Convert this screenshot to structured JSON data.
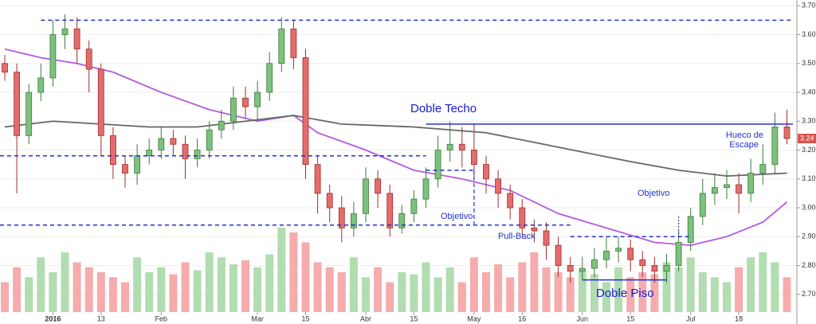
{
  "chart_data": {
    "type": "candlestick",
    "open": [
      3.5,
      3.47,
      3.25,
      3.4,
      3.45,
      3.6,
      3.62,
      3.55,
      3.48,
      3.25,
      3.15,
      3.12,
      3.18,
      3.2,
      3.24,
      3.22,
      3.17,
      3.2,
      3.27,
      3.3,
      3.38,
      3.35,
      3.4,
      3.5,
      3.62,
      3.52,
      3.15,
      3.05,
      3.0,
      2.93,
      2.98,
      3.1,
      3.05,
      2.93,
      2.98,
      3.03,
      3.1,
      3.2,
      3.22,
      3.2,
      3.15,
      3.1,
      3.05,
      3.0,
      2.93,
      2.92,
      2.87,
      2.8,
      2.78,
      2.79,
      2.82,
      2.85,
      2.86,
      2.82,
      2.8,
      2.78,
      2.8,
      2.88,
      2.97,
      3.05,
      3.07,
      3.08,
      3.05,
      3.12,
      3.15,
      3.28
    ],
    "high": [
      3.53,
      3.5,
      3.43,
      3.5,
      3.65,
      3.67,
      3.66,
      3.58,
      3.5,
      3.28,
      3.18,
      3.22,
      3.24,
      3.28,
      3.27,
      3.25,
      3.24,
      3.3,
      3.34,
      3.42,
      3.42,
      3.44,
      3.54,
      3.66,
      3.65,
      3.55,
      3.18,
      3.08,
      3.04,
      3.02,
      3.14,
      3.13,
      3.08,
      3.01,
      3.06,
      3.14,
      3.25,
      3.3,
      3.28,
      3.29,
      3.18,
      3.13,
      3.08,
      3.03,
      2.96,
      2.95,
      2.9,
      2.83,
      2.83,
      2.86,
      2.9,
      2.9,
      2.89,
      2.85,
      2.83,
      2.84,
      2.92,
      3.0,
      3.1,
      3.12,
      3.13,
      3.12,
      3.17,
      3.22,
      3.33,
      3.34
    ],
    "low": [
      3.44,
      3.05,
      3.22,
      3.37,
      3.42,
      3.55,
      3.5,
      3.4,
      3.18,
      3.1,
      3.07,
      3.08,
      3.15,
      3.17,
      3.18,
      3.1,
      3.14,
      3.17,
      3.24,
      3.27,
      3.31,
      3.3,
      3.37,
      3.47,
      3.48,
      3.1,
      2.98,
      2.95,
      2.88,
      2.9,
      2.95,
      3.0,
      2.9,
      2.91,
      2.95,
      3.0,
      3.07,
      3.16,
      3.14,
      3.1,
      3.05,
      3.0,
      2.96,
      2.9,
      2.88,
      2.82,
      2.76,
      2.74,
      2.75,
      2.76,
      2.79,
      2.81,
      2.78,
      2.76,
      2.74,
      2.74,
      2.78,
      2.85,
      2.94,
      3.01,
      3.03,
      2.98,
      3.02,
      3.08,
      3.12,
      3.22
    ],
    "close": [
      3.47,
      3.25,
      3.4,
      3.45,
      3.6,
      3.62,
      3.55,
      3.48,
      3.25,
      3.15,
      3.12,
      3.18,
      3.2,
      3.24,
      3.22,
      3.17,
      3.2,
      3.27,
      3.3,
      3.38,
      3.35,
      3.4,
      3.5,
      3.62,
      3.52,
      3.15,
      3.05,
      3.0,
      2.93,
      2.98,
      3.1,
      3.05,
      2.93,
      2.98,
      3.03,
      3.1,
      3.2,
      3.22,
      3.2,
      3.15,
      3.1,
      3.05,
      3.0,
      2.93,
      2.92,
      2.87,
      2.8,
      2.78,
      2.79,
      2.82,
      2.85,
      2.86,
      2.82,
      2.8,
      2.78,
      2.8,
      2.88,
      2.97,
      3.05,
      3.07,
      3.08,
      3.05,
      3.12,
      3.15,
      3.28,
      3.24
    ],
    "volume": [
      30,
      45,
      35,
      55,
      40,
      60,
      50,
      45,
      40,
      35,
      30,
      55,
      40,
      45,
      38,
      50,
      42,
      60,
      55,
      48,
      52,
      45,
      58,
      85,
      80,
      70,
      50,
      45,
      40,
      55,
      35,
      45,
      30,
      40,
      38,
      50,
      35,
      45,
      30,
      55,
      40,
      48,
      35,
      50,
      60,
      45,
      40,
      35,
      42,
      38,
      30,
      45,
      35,
      40,
      38,
      50,
      45,
      55,
      40,
      35,
      30,
      45,
      55,
      60,
      50,
      35
    ],
    "up_color": "#7cc17c",
    "down_color": "#e46c6c",
    "moving_averages": [
      {
        "color": "#b45be0",
        "x": [
          0,
          3,
          6,
          9,
          13,
          17,
          21,
          24,
          26,
          30,
          34,
          38,
          42,
          46,
          50,
          54,
          57,
          60,
          63,
          65
        ],
        "values": [
          3.55,
          3.52,
          3.5,
          3.47,
          3.4,
          3.34,
          3.3,
          3.32,
          3.26,
          3.2,
          3.13,
          3.1,
          3.06,
          2.98,
          2.93,
          2.88,
          2.87,
          2.9,
          2.95,
          3.02
        ]
      },
      {
        "color": "#666666",
        "x": [
          0,
          4,
          8,
          12,
          16,
          20,
          24,
          28,
          34,
          40,
          46,
          52,
          56,
          60,
          65
        ],
        "values": [
          3.28,
          3.3,
          3.29,
          3.28,
          3.28,
          3.3,
          3.32,
          3.29,
          3.28,
          3.26,
          3.21,
          3.16,
          3.13,
          3.11,
          3.12
        ]
      }
    ],
    "levels": [
      {
        "value": 3.65,
        "x": [
          3,
          65.5
        ],
        "style": "dashed"
      },
      {
        "value": 3.18,
        "x": [
          -0.4,
          35
        ],
        "style": "dashed"
      },
      {
        "value": 2.94,
        "x": [
          -0.4,
          47
        ],
        "style": "dashed"
      },
      {
        "value": 3.13,
        "x": [
          35,
          39
        ],
        "style": "dashed"
      },
      {
        "value": 2.9,
        "x": [
          47,
          57
        ],
        "style": "dashed"
      },
      {
        "value": 3.29,
        "x": [
          35,
          65.5
        ],
        "style": "solid"
      },
      {
        "value": 2.75,
        "x": [
          48,
          55
        ],
        "style": "solid"
      }
    ],
    "verticals": [
      {
        "x": 39,
        "values": [
          3.13,
          2.94
        ]
      },
      {
        "x": 56,
        "values": [
          2.97,
          2.9
        ]
      }
    ],
    "annotations": [
      "Doble Techo",
      "Objetivo",
      "Pull-Back",
      "Doble Piso",
      "Objetivo",
      "Hueco de",
      "Escape"
    ],
    "ylim": [
      2.6,
      3.72
    ],
    "yticks": [
      {
        "value": 2.7,
        "label": "2.70"
      },
      {
        "value": 2.8,
        "label": "2.80"
      },
      {
        "value": 2.9,
        "label": "2.90"
      },
      {
        "value": 3.0,
        "label": "3.00"
      },
      {
        "value": 3.1,
        "label": "3.10"
      },
      {
        "value": 3.2,
        "label": "3.20"
      },
      {
        "value": 3.3,
        "label": "3.30"
      },
      {
        "value": 3.4,
        "label": "3.40"
      },
      {
        "value": 3.5,
        "label": "3.50"
      },
      {
        "value": 3.6,
        "label": "3.60"
      },
      {
        "value": 3.7,
        "label": "3.70"
      }
    ],
    "xticks": [
      {
        "value": 4,
        "label": "2016"
      },
      {
        "value": 8,
        "label": "13"
      },
      {
        "value": 13,
        "label": "Feb"
      },
      {
        "value": 21,
        "label": "Mar"
      },
      {
        "value": 25,
        "label": "15"
      },
      {
        "value": 30,
        "label": "Abr"
      },
      {
        "value": 34,
        "label": "15"
      },
      {
        "value": 39,
        "label": "May"
      },
      {
        "value": 43,
        "label": "16"
      },
      {
        "value": 48,
        "label": "Jun"
      },
      {
        "value": 52,
        "label": "15"
      },
      {
        "value": 57,
        "label": "Jul"
      },
      {
        "value": 61,
        "label": "18"
      }
    ],
    "grid": true
  }
}
